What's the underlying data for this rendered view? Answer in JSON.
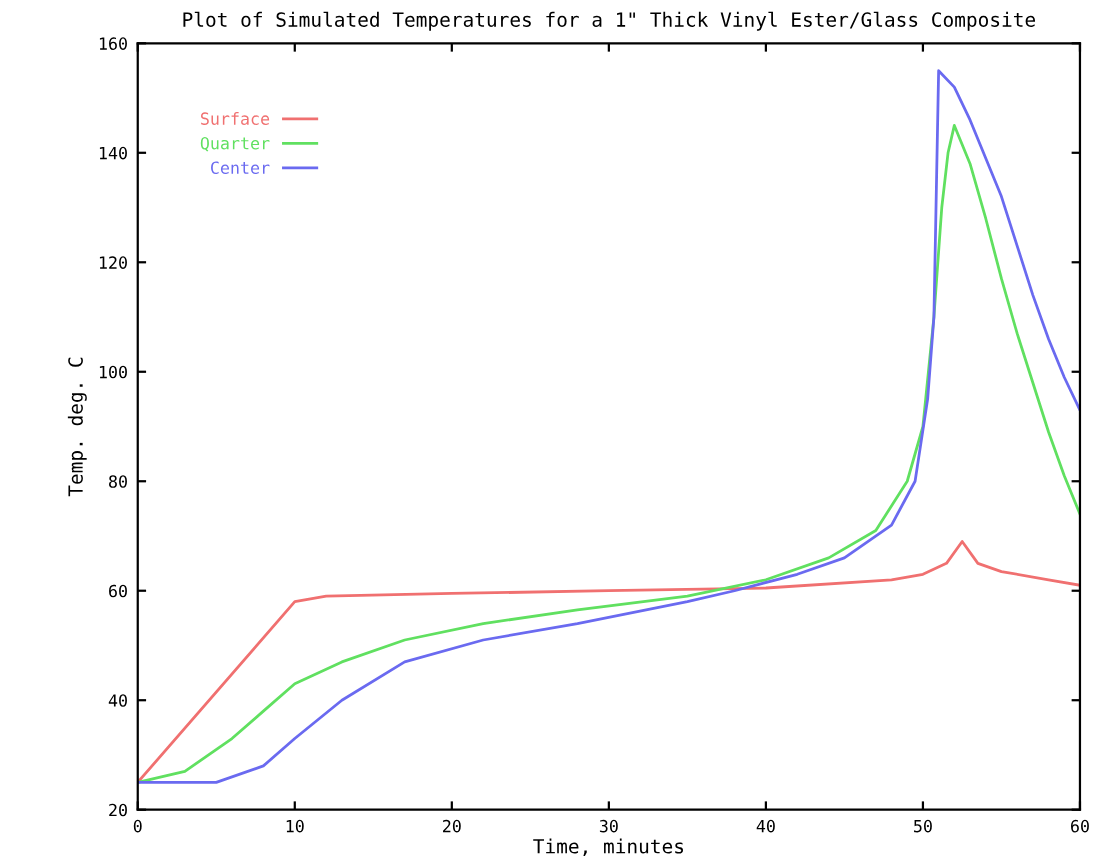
{
  "chart_data": {
    "type": "line",
    "title": "Plot of Simulated Temperatures for a 1\" Thick Vinyl Ester/Glass Composite",
    "xlabel": "Time, minutes",
    "ylabel": "Temp. deg. C",
    "xlim": [
      0,
      60
    ],
    "xticks": [
      0,
      10,
      20,
      30,
      40,
      50,
      60
    ],
    "ylim": [
      20,
      160
    ],
    "yticks": [
      20,
      40,
      60,
      80,
      100,
      120,
      140,
      160
    ],
    "grid": false,
    "legend": "top left",
    "marker": "none",
    "line_style": "solid",
    "series": [
      {
        "name": "Surface",
        "color": "#f07070",
        "x": [
          0,
          10,
          12,
          20,
          30,
          40,
          48,
          50,
          51.5,
          52.5,
          53.5,
          55,
          58,
          60
        ],
        "values": [
          25,
          58,
          59,
          59.5,
          60,
          60.5,
          62,
          63,
          65,
          69,
          65,
          63.5,
          62,
          61
        ]
      },
      {
        "name": "Quarter",
        "color": "#60e060",
        "x": [
          0,
          3,
          6,
          8,
          10,
          13,
          17,
          22,
          28,
          35,
          40,
          44,
          47,
          49,
          50,
          50.7,
          51.2,
          51.6,
          52,
          53,
          54,
          55,
          56,
          57,
          58,
          59,
          60
        ],
        "values": [
          25,
          27,
          33,
          38,
          43,
          47,
          51,
          54,
          56.5,
          59,
          62,
          66,
          71,
          80,
          90,
          110,
          130,
          140,
          145,
          138,
          128,
          117,
          107,
          98,
          89,
          81,
          74
        ]
      },
      {
        "name": "Center",
        "color": "#6a6af0",
        "x": [
          0,
          5,
          8,
          10,
          13,
          17,
          22,
          28,
          35,
          38,
          42,
          45,
          48,
          49.5,
          50.3,
          50.7,
          51,
          52,
          53,
          54,
          55,
          56,
          57,
          58,
          59,
          60
        ],
        "values": [
          25,
          25,
          28,
          33,
          40,
          47,
          51,
          54,
          58,
          60,
          63,
          66,
          72,
          80,
          95,
          110,
          155,
          152,
          146,
          139,
          132,
          123,
          114,
          106,
          99,
          93
        ]
      }
    ]
  }
}
